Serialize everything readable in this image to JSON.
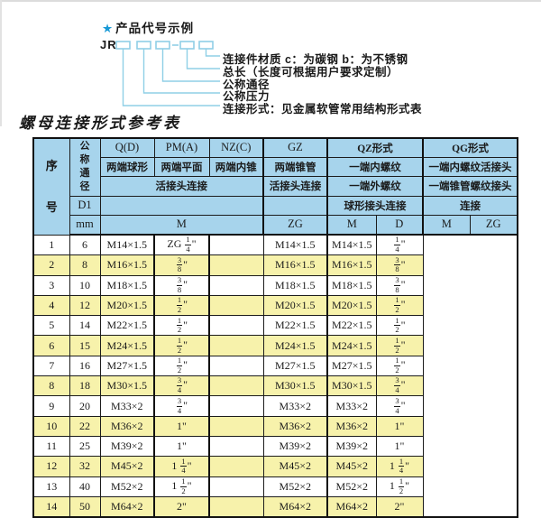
{
  "colors": {
    "header_bg": "#a7d4ec",
    "row_alt": "#f7f2ab",
    "line_blue": "#8fcfe6",
    "star_blue": "#1899d6"
  },
  "diagram": {
    "star": "★",
    "title": "产品代号示例",
    "prefix": "JR",
    "labels": [
      "连接件材质  c：为碳钢  b：为不锈钢",
      "总长（长度可根据用户要求定制）",
      "公称通径",
      "公称压力",
      "连接形式：见金属软管常用结构形式表"
    ]
  },
  "table": {
    "title": "螺母连接形式参考表",
    "header": {
      "xuhao": "序号",
      "tongjing": "公称通径",
      "d1": "D1",
      "mm": "mm",
      "col_q": "Q(D)",
      "col_pm": "PM(A)",
      "col_nz": "NZ(C)",
      "col_gz": "GZ",
      "col_qz": "QZ形式",
      "col_qg": "QG形式",
      "q_desc": "两端球形",
      "pm_desc": "两端平面",
      "nz_desc": "两端内锥",
      "gz_desc": "两端锥管",
      "qz_desc1": "一端内螺纹",
      "qg_desc1": "一端内螺纹活接头",
      "left_conn": "活接头连接",
      "gz_conn": "活接头连接",
      "qz_desc2": "一端外螺纹",
      "qg_desc2": "一端锥管螺纹接头",
      "qz_conn": "球形接头连接",
      "qg_conn": "连接",
      "m_label": "M",
      "zg_label": "ZG",
      "qz_m_label": "M",
      "qz_d_label": "D",
      "qg_m_label": "M",
      "qg_zg_label": "ZG"
    },
    "rows": [
      {
        "no": "1",
        "dn": "6",
        "m": "M14×1.5",
        "zg": "ZG 1/4\"",
        "qz_m": "",
        "qz_d": "M14×1.5",
        "qg_m": "M14×1.5",
        "qg_zg": "1/4\""
      },
      {
        "no": "2",
        "dn": "8",
        "m": "M16×1.5",
        "zg": "3/8\"",
        "qz_m": "",
        "qz_d": "M16×1.5",
        "qg_m": "M16×1.5",
        "qg_zg": "3/8\""
      },
      {
        "no": "3",
        "dn": "10",
        "m": "M18×1.5",
        "zg": "3/8\"",
        "qz_m": "",
        "qz_d": "M18×1.5",
        "qg_m": "M18×1.5",
        "qg_zg": "3/8\""
      },
      {
        "no": "4",
        "dn": "12",
        "m": "M20×1.5",
        "zg": "1/2\"",
        "qz_m": "",
        "qz_d": "M20×1.5",
        "qg_m": "M20×1.5",
        "qg_zg": "1/2\""
      },
      {
        "no": "5",
        "dn": "14",
        "m": "M22×1.5",
        "zg": "1/2\"",
        "qz_m": "",
        "qz_d": "M22×1.5",
        "qg_m": "M22×1.5",
        "qg_zg": "1/2\""
      },
      {
        "no": "6",
        "dn": "15",
        "m": "M24×1.5",
        "zg": "1/2\"",
        "qz_m": "",
        "qz_d": "M24×1.5",
        "qg_m": "M24×1.5",
        "qg_zg": "1/2\""
      },
      {
        "no": "7",
        "dn": "16",
        "m": "M27×1.5",
        "zg": "1/2\"",
        "qz_m": "",
        "qz_d": "M27×1.5",
        "qg_m": "M27×1.5",
        "qg_zg": "1/2\""
      },
      {
        "no": "8",
        "dn": "18",
        "m": "M30×1.5",
        "zg": "3/4\"",
        "qz_m": "",
        "qz_d": "M30×1.5",
        "qg_m": "M30×1.5",
        "qg_zg": "3/4\""
      },
      {
        "no": "9",
        "dn": "20",
        "m": "M33×2",
        "zg": "3/4\"",
        "qz_m": "",
        "qz_d": "M33×2",
        "qg_m": "M33×2",
        "qg_zg": "3/4\""
      },
      {
        "no": "10",
        "dn": "22",
        "m": "M36×2",
        "zg": "1\"",
        "qz_m": "",
        "qz_d": "M36×2",
        "qg_m": "M36×2",
        "qg_zg": "1\""
      },
      {
        "no": "11",
        "dn": "25",
        "m": "M39×2",
        "zg": "1\"",
        "qz_m": "",
        "qz_d": "M39×2",
        "qg_m": "M39×2",
        "qg_zg": "1\""
      },
      {
        "no": "12",
        "dn": "32",
        "m": "M45×2",
        "zg": "1 1/4\"",
        "qz_m": "",
        "qz_d": "M45×2",
        "qg_m": "M45×2",
        "qg_zg": "1 1/4\""
      },
      {
        "no": "13",
        "dn": "40",
        "m": "M52×2",
        "zg": "1 1/2\"",
        "qz_m": "",
        "qz_d": "M52×2",
        "qg_m": "M52×2",
        "qg_zg": "1 1/2\""
      },
      {
        "no": "14",
        "dn": "50",
        "m": "M64×2",
        "zg": "2\"",
        "qz_m": "",
        "qz_d": "M64×2",
        "qg_m": "M64×2",
        "qg_zg": "2\""
      }
    ]
  }
}
